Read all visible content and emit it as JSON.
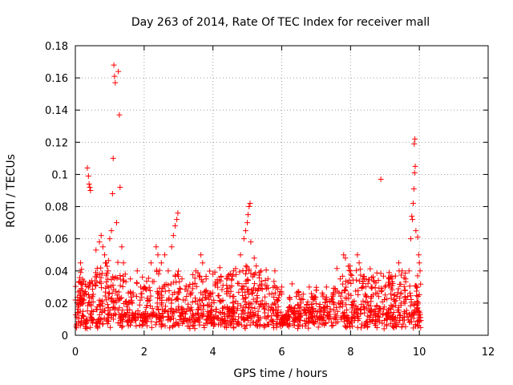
{
  "chart_data": {
    "type": "scatter",
    "title": "Day 263 of 2014, Rate Of TEC Index for receiver mall",
    "xlabel": "GPS time / hours",
    "ylabel": "ROTI / TECUs",
    "xlim": [
      0,
      12
    ],
    "ylim": [
      0,
      0.18
    ],
    "x_ticks": [
      0,
      2,
      4,
      6,
      8,
      10,
      12
    ],
    "x_tick_labels": [
      "0",
      "2",
      "4",
      "6",
      "8",
      "10",
      "12"
    ],
    "y_ticks": [
      0,
      0.02,
      0.04,
      0.06,
      0.08,
      0.1,
      0.12,
      0.14,
      0.16,
      0.18
    ],
    "y_tick_labels": [
      "0",
      "0.02",
      "0.04",
      "0.06",
      "0.08",
      "0.1",
      "0.12",
      "0.14",
      "0.16",
      "0.18"
    ],
    "grid": true,
    "marker": "+",
    "series": [
      {
        "name": "ROTI",
        "color": "#ff0000",
        "points": [
          [
            0.1,
            0.033
          ],
          [
            0.15,
            0.045
          ],
          [
            0.18,
            0.041
          ],
          [
            0.2,
            0.028
          ],
          [
            0.25,
            0.022
          ],
          [
            0.35,
            0.104
          ],
          [
            0.38,
            0.099
          ],
          [
            0.4,
            0.094
          ],
          [
            0.42,
            0.092
          ],
          [
            0.44,
            0.09
          ],
          [
            0.6,
            0.053
          ],
          [
            0.7,
            0.058
          ],
          [
            0.75,
            0.062
          ],
          [
            0.8,
            0.055
          ],
          [
            0.85,
            0.05
          ],
          [
            0.9,
            0.045
          ],
          [
            0.95,
            0.04
          ],
          [
            1.0,
            0.06
          ],
          [
            1.05,
            0.065
          ],
          [
            1.08,
            0.088
          ],
          [
            1.1,
            0.11
          ],
          [
            1.12,
            0.168
          ],
          [
            1.14,
            0.161
          ],
          [
            1.16,
            0.157
          ],
          [
            1.2,
            0.07
          ],
          [
            1.25,
            0.164
          ],
          [
            1.28,
            0.137
          ],
          [
            1.3,
            0.092
          ],
          [
            1.35,
            0.055
          ],
          [
            1.4,
            0.045
          ],
          [
            1.45,
            0.038
          ],
          [
            1.6,
            0.035
          ],
          [
            1.8,
            0.04
          ],
          [
            1.9,
            0.03
          ],
          [
            2.0,
            0.03
          ],
          [
            2.2,
            0.045
          ],
          [
            2.35,
            0.055
          ],
          [
            2.4,
            0.05
          ],
          [
            2.5,
            0.045
          ],
          [
            2.6,
            0.05
          ],
          [
            2.7,
            0.04
          ],
          [
            2.8,
            0.055
          ],
          [
            2.85,
            0.062
          ],
          [
            2.9,
            0.068
          ],
          [
            2.95,
            0.072
          ],
          [
            2.98,
            0.076
          ],
          [
            3.1,
            0.035
          ],
          [
            3.3,
            0.03
          ],
          [
            3.5,
            0.04
          ],
          [
            3.65,
            0.05
          ],
          [
            3.7,
            0.045
          ],
          [
            3.8,
            0.035
          ],
          [
            4.0,
            0.038
          ],
          [
            4.2,
            0.042
          ],
          [
            4.4,
            0.035
          ],
          [
            4.6,
            0.04
          ],
          [
            4.8,
            0.05
          ],
          [
            4.9,
            0.06
          ],
          [
            4.95,
            0.065
          ],
          [
            5.0,
            0.07
          ],
          [
            5.02,
            0.075
          ],
          [
            5.05,
            0.08
          ],
          [
            5.08,
            0.082
          ],
          [
            5.1,
            0.058
          ],
          [
            5.2,
            0.048
          ],
          [
            5.4,
            0.04
          ],
          [
            5.6,
            0.035
          ],
          [
            5.8,
            0.04
          ],
          [
            6.0,
            0.03
          ],
          [
            6.3,
            0.032
          ],
          [
            6.5,
            0.025
          ],
          [
            6.8,
            0.03
          ],
          [
            7.0,
            0.028
          ],
          [
            7.3,
            0.03
          ],
          [
            7.5,
            0.025
          ],
          [
            7.7,
            0.035
          ],
          [
            7.8,
            0.05
          ],
          [
            7.85,
            0.048
          ],
          [
            8.0,
            0.04
          ],
          [
            8.2,
            0.05
          ],
          [
            8.25,
            0.045
          ],
          [
            8.4,
            0.035
          ],
          [
            8.6,
            0.03
          ],
          [
            8.88,
            0.097
          ],
          [
            9.0,
            0.03
          ],
          [
            9.2,
            0.035
          ],
          [
            9.4,
            0.045
          ],
          [
            9.5,
            0.04
          ],
          [
            9.6,
            0.035
          ],
          [
            9.7,
            0.04
          ],
          [
            9.75,
            0.06
          ],
          [
            9.78,
            0.074
          ],
          [
            9.8,
            0.072
          ],
          [
            9.82,
            0.082
          ],
          [
            9.84,
            0.091
          ],
          [
            9.86,
            0.101
          ],
          [
            9.88,
            0.105
          ],
          [
            9.85,
            0.119
          ],
          [
            9.87,
            0.122
          ],
          [
            9.9,
            0.065
          ],
          [
            9.95,
            0.061
          ],
          [
            9.98,
            0.05
          ],
          [
            10.0,
            0.045
          ],
          [
            10.02,
            0.04
          ]
        ]
      }
    ]
  }
}
